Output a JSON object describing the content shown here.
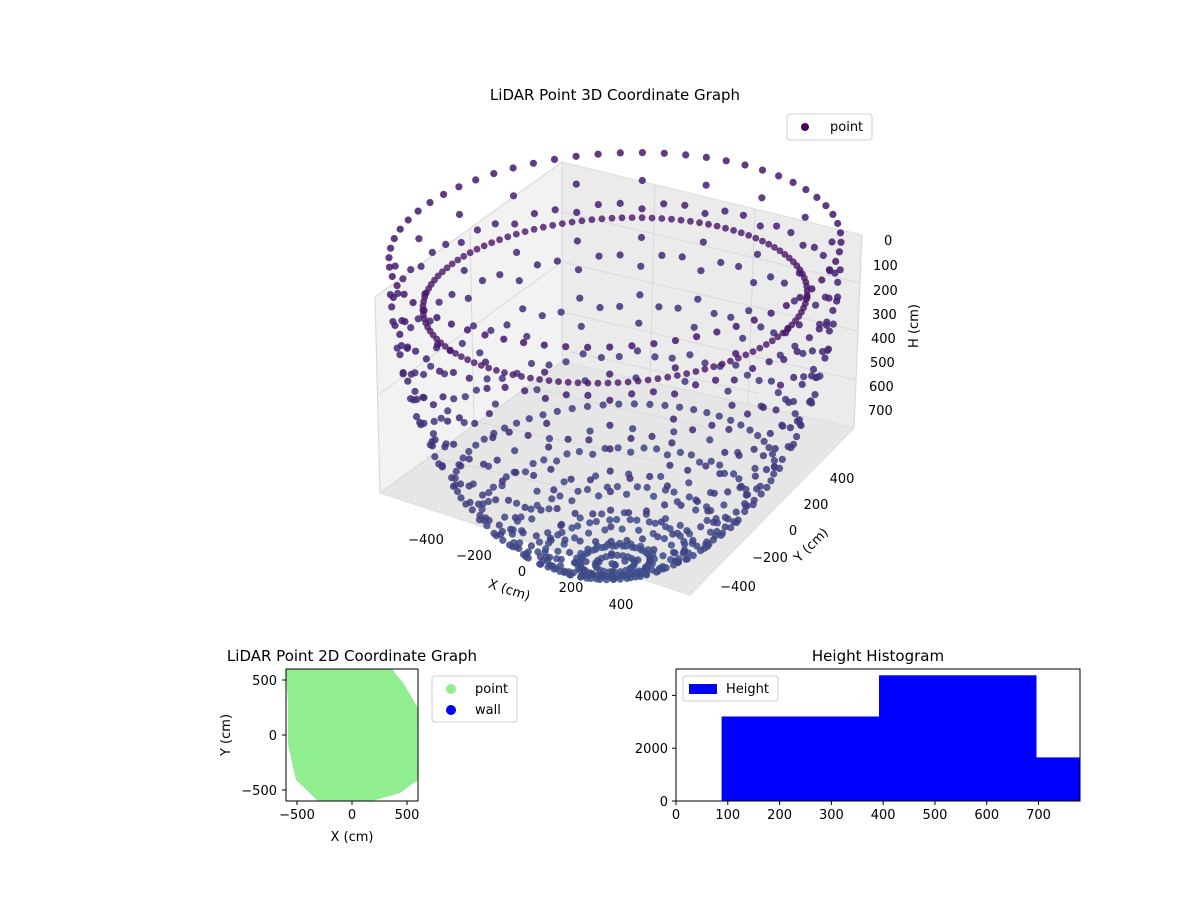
{
  "colors": {
    "point_dark": "#440154",
    "point_mid": "#3b528b",
    "point_2d": "#90ee90",
    "wall": "#0000ff",
    "hist_bar": "#0000ff"
  },
  "chart_data": [
    {
      "type": "scatter",
      "projection": "3d",
      "title": "LiDAR Point 3D Coordinate Graph",
      "xlabel": "X (cm)",
      "ylabel": "Y (cm)",
      "zlabel": "H (cm)",
      "xticks": [
        "−400",
        "−200",
        "0",
        "200",
        "400"
      ],
      "yticks": [
        "−400",
        "−200",
        "0",
        "200",
        "400"
      ],
      "zticks": [
        "0",
        "100",
        "200",
        "300",
        "400",
        "500",
        "600",
        "700"
      ],
      "xlim": [
        -560,
        560
      ],
      "ylim": [
        -560,
        560
      ],
      "zlim": [
        0,
        750
      ],
      "z_inverted": true,
      "legend": {
        "entries": [
          "point"
        ],
        "placement": "top-right"
      },
      "series": [
        {
          "name": "point",
          "shape": "hemispherical dome of scan arcs, radius ~500 cm, depth to ~750 cm",
          "dome_radius": 500,
          "dome_depth": 750
        }
      ],
      "grid": true
    },
    {
      "type": "scatter",
      "title": "LiDAR Point 2D Coordinate Graph",
      "xlabel": "X (cm)",
      "ylabel": "Y (cm)",
      "xticks": [
        "−500",
        "0",
        "500"
      ],
      "yticks": [
        "−500",
        "0",
        "500"
      ],
      "xlim": [
        -600,
        600
      ],
      "ylim": [
        -600,
        600
      ],
      "legend": {
        "entries": [
          "point",
          "wall"
        ],
        "placement": "outside-right"
      },
      "series": [
        {
          "name": "point",
          "shape": "filled disc",
          "center": [
            0,
            0
          ],
          "radius": 600
        },
        {
          "name": "wall",
          "points": []
        }
      ]
    },
    {
      "type": "bar",
      "subtype": "histogram",
      "title": "Height Histogram",
      "xlabel": "",
      "ylabel": "",
      "xticks": [
        "0",
        "100",
        "200",
        "300",
        "400",
        "500",
        "600",
        "700"
      ],
      "yticks": [
        "0",
        "2000",
        "4000"
      ],
      "xlim": [
        0,
        780
      ],
      "ylim": [
        0,
        5000
      ],
      "legend": {
        "entries": [
          "Height"
        ],
        "placement": "top-left"
      },
      "bins": [
        {
          "start": 88,
          "end": 392,
          "count": 3200
        },
        {
          "start": 392,
          "end": 696,
          "count": 4760
        },
        {
          "start": 696,
          "end": 780,
          "count": 1650
        }
      ]
    }
  ]
}
